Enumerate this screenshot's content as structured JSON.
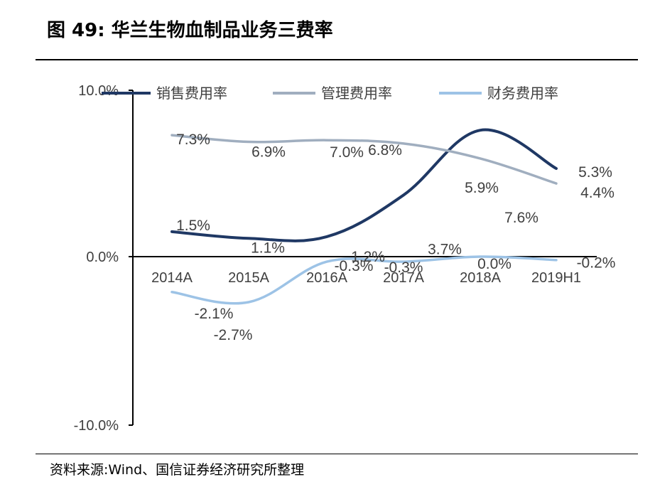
{
  "figure": {
    "title": "图 49:  华兰生物血制品业务三费率",
    "source": "资料来源:Wind、国信证券经济研究所整理"
  },
  "chart_data": {
    "type": "line",
    "categories": [
      "2014A",
      "2015A",
      "2016A",
      "2017A",
      "2018A",
      "2019H1"
    ],
    "y_ticks": [
      "10.0%",
      "0.0%",
      "-10.0%"
    ],
    "ylim": [
      -10,
      10
    ],
    "grid": false,
    "legend_position": "top",
    "series": [
      {
        "name": "销售费用率",
        "color": "#1f3864",
        "values": [
          1.5,
          1.1,
          1.2,
          3.7,
          7.6,
          5.3
        ],
        "labels": [
          "1.5%",
          "1.1%",
          "1.2%",
          "3.7%",
          "7.6%",
          "5.3%"
        ]
      },
      {
        "name": "管理费用率",
        "color": "#a0aebf",
        "values": [
          7.3,
          6.9,
          7.0,
          6.8,
          5.9,
          4.4
        ],
        "labels": [
          "7.3%",
          "6.9%",
          "7.0%",
          "6.8%",
          "5.9%",
          "4.4%"
        ]
      },
      {
        "name": "财务费用率",
        "color": "#9dc3e6",
        "values": [
          -2.1,
          -2.7,
          -0.3,
          -0.3,
          0.0,
          -0.2
        ],
        "labels": [
          "-2.1%",
          "-2.7%",
          "-0.3%",
          "-0.3%",
          "0.0%",
          "-0.2%"
        ]
      }
    ]
  }
}
